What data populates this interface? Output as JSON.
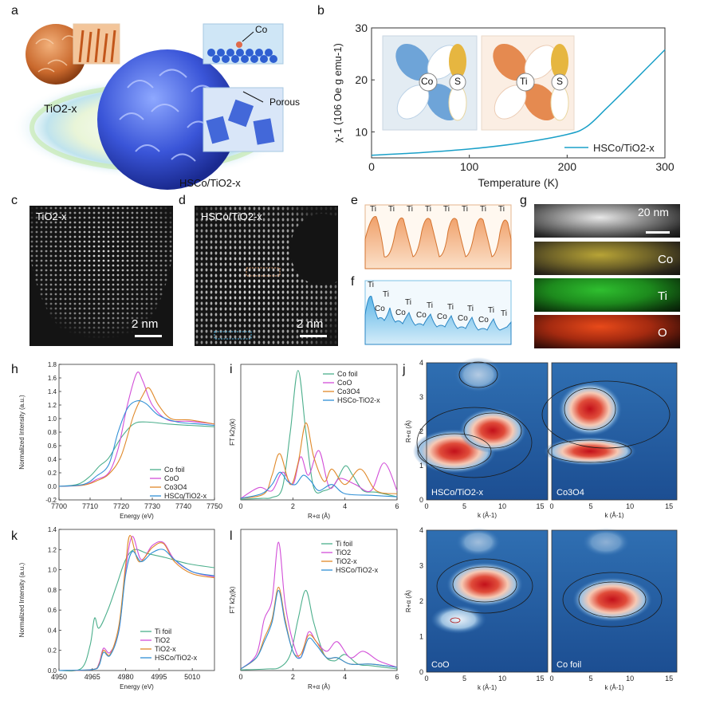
{
  "panel_letters": [
    "a",
    "b",
    "c",
    "d",
    "e",
    "f",
    "g",
    "h",
    "i",
    "j",
    "k",
    "l"
  ],
  "a": {
    "tio2_label": "TiO2-x",
    "hsco_label": "HSCo/TiO2-x",
    "co_label": "Co",
    "porous_label": "Porous"
  },
  "b": {
    "ylabel": "χ-1 (106 Oe g emu-1)",
    "xlabel": "Temperature (K)",
    "legend": "HSCo/TiO2-x",
    "co_label": "Co",
    "s_label": "S",
    "ti_label": "Ti",
    "s2_label": "S",
    "xticks": [
      "0",
      "100",
      "200",
      "300"
    ],
    "yticks": [
      "10",
      "20",
      "30"
    ]
  },
  "c": {
    "title": "TiO2-x",
    "scale": "2 nm"
  },
  "d": {
    "title": "HSCo/TiO2-x",
    "scale": "2 nm"
  },
  "e": {
    "labels": [
      "Ti",
      "Ti",
      "Ti",
      "Ti",
      "Ti",
      "Ti",
      "Ti",
      "Ti"
    ]
  },
  "f": {
    "labels": [
      "Ti",
      "Ti",
      "Co",
      "Ti",
      "Co",
      "Ti",
      "Co",
      "Ti",
      "Co",
      "Ti",
      "Co",
      "Ti",
      "Co",
      "Ti"
    ]
  },
  "g": {
    "scale": "20 nm",
    "maps": [
      "Co",
      "Ti",
      "O"
    ],
    "colors": [
      "#b8a436",
      "#2fa52f",
      "#d43a1a"
    ]
  },
  "h": {
    "ylabel": "Normalized Intensity (a.u.)",
    "xlabel": "Energy (eV)",
    "xticks": [
      "7700",
      "7710",
      "7720",
      "7730",
      "7740",
      "7750"
    ],
    "yticks": [
      "-0.2",
      "0.0",
      "0.2",
      "0.4",
      "0.6",
      "0.8",
      "1.0",
      "1.2",
      "1.4",
      "1.6",
      "1.8"
    ],
    "legend": [
      "Co foil",
      "CoO",
      "Co3O4",
      "HSCo/TiO2-x"
    ]
  },
  "i": {
    "ylabel": "FT k2χ(k)",
    "xlabel": "R+α (Å)",
    "xticks": [
      "0",
      "2",
      "4",
      "6"
    ],
    "legend": [
      "Co foil",
      "CoO",
      "Co3O4",
      "HSCo-TiO2-x"
    ]
  },
  "j": {
    "ylabel": "R+α (Å)",
    "xlabel": "k (Å-1)",
    "xticks": [
      "0",
      "5",
      "10",
      "15"
    ],
    "yticks": [
      "0",
      "1",
      "2",
      "3",
      "4"
    ],
    "maps": [
      "HSCo/TiO2-x",
      "Co3O4",
      "CoO",
      "Co foil"
    ]
  },
  "k": {
    "ylabel": "Normalized Intensity (a.u.)",
    "xlabel": "Energy (eV)",
    "xticks": [
      "4950",
      "4965",
      "4980",
      "4995",
      "5010"
    ],
    "yticks": [
      "0.0",
      "0.2",
      "0.4",
      "0.6",
      "0.8",
      "1.0",
      "1.2",
      "1.4"
    ],
    "legend": [
      "Ti foil",
      "TiO2",
      "TiO2-x",
      "HSCo/TiO2-x"
    ]
  },
  "l": {
    "ylabel": "FT k2χ(k)",
    "xlabel": "R+α (Å)",
    "xticks": [
      "0",
      "2",
      "4",
      "6"
    ],
    "legend": [
      "Ti foil",
      "TiO2",
      "TiO2-x",
      "HSCo/TiO2-x"
    ]
  },
  "colors": {
    "green": "#4caf8c",
    "magenta": "#d24fd8",
    "orange": "#e0892a",
    "blue": "#2f8fd6",
    "cyan": "#1aa0c8"
  },
  "chart_data": [
    {
      "type": "line",
      "panel": "b",
      "xlabel": "Temperature (K)",
      "ylabel": "χ-1 (106 Oe g emu-1)",
      "xlim": [
        0,
        300
      ],
      "ylim": [
        5,
        30
      ],
      "series": [
        {
          "name": "HSCo/TiO2-x",
          "x": [
            0,
            50,
            100,
            150,
            200,
            220,
            240,
            260,
            280,
            300
          ],
          "y": [
            5.5,
            6.0,
            6.7,
            7.8,
            9.5,
            11.0,
            14.5,
            18.2,
            22.0,
            25.8
          ]
        }
      ]
    },
    {
      "type": "line",
      "panel": "h",
      "xlabel": "Energy (eV)",
      "ylabel": "Normalized Intensity (a.u.)",
      "xlim": [
        7700,
        7750
      ],
      "ylim": [
        -0.2,
        1.8
      ],
      "series": [
        {
          "name": "Co foil",
          "x": [
            7700,
            7706,
            7710,
            7713,
            7716,
            7720,
            7724,
            7728,
            7735,
            7742,
            7750
          ],
          "y": [
            0.0,
            0.03,
            0.15,
            0.3,
            0.42,
            0.72,
            0.92,
            0.95,
            0.92,
            0.9,
            0.88
          ]
        },
        {
          "name": "CoO",
          "x": [
            7700,
            7708,
            7712,
            7716,
            7719,
            7722,
            7725,
            7727,
            7730,
            7735,
            7742,
            7750
          ],
          "y": [
            0.0,
            0.02,
            0.1,
            0.2,
            0.55,
            1.2,
            1.67,
            1.55,
            1.2,
            0.98,
            0.96,
            0.92
          ]
        },
        {
          "name": "Co3O4",
          "x": [
            7700,
            7708,
            7712,
            7716,
            7720,
            7724,
            7727,
            7729,
            7732,
            7736,
            7742,
            7750
          ],
          "y": [
            0.0,
            0.02,
            0.08,
            0.18,
            0.45,
            1.05,
            1.35,
            1.45,
            1.2,
            1.0,
            0.98,
            0.92
          ]
        },
        {
          "name": "HSCo/TiO2-x",
          "x": [
            7700,
            7708,
            7712,
            7716,
            7719,
            7722,
            7725,
            7728,
            7732,
            7738,
            7745,
            7750
          ],
          "y": [
            0.0,
            0.03,
            0.15,
            0.32,
            0.8,
            1.15,
            1.26,
            1.22,
            1.05,
            0.95,
            0.92,
            0.9
          ]
        }
      ]
    },
    {
      "type": "line",
      "panel": "i",
      "xlabel": "R+α (Å)",
      "ylabel": "FT k2χ(k)",
      "xlim": [
        0,
        6
      ],
      "series": [
        {
          "name": "Co foil",
          "x": [
            0,
            0.8,
            1.2,
            1.6,
            1.9,
            2.2,
            2.5,
            2.8,
            3.2,
            3.6,
            4.0,
            4.3,
            4.7,
            5.2,
            6.0
          ],
          "y": [
            0.02,
            0.05,
            0.08,
            0.4,
            2.2,
            4.2,
            2.2,
            0.4,
            0.3,
            0.5,
            1.1,
            0.8,
            0.3,
            0.25,
            0.1
          ]
        },
        {
          "name": "CoO",
          "x": [
            0,
            0.7,
            1.2,
            1.6,
            2.0,
            2.3,
            2.6,
            3.0,
            3.4,
            3.8,
            4.4,
            5.0,
            5.5,
            6.0
          ],
          "y": [
            0.05,
            0.4,
            0.3,
            0.9,
            0.5,
            1.4,
            0.8,
            1.6,
            0.4,
            0.7,
            0.5,
            0.3,
            1.2,
            0.3
          ]
        },
        {
          "name": "Co3O4",
          "x": [
            0,
            0.9,
            1.2,
            1.5,
            1.9,
            2.2,
            2.5,
            2.8,
            3.2,
            3.5,
            4.0,
            4.6,
            5.2,
            6.0
          ],
          "y": [
            0.05,
            0.2,
            0.8,
            1.5,
            0.5,
            1.2,
            2.5,
            1.4,
            0.6,
            1.0,
            0.5,
            1.0,
            0.3,
            0.2
          ]
        },
        {
          "name": "HSCo-TiO2-x",
          "x": [
            0,
            0.8,
            1.2,
            1.5,
            1.8,
            2.1,
            2.4,
            2.7,
            3.0,
            3.5,
            4.0,
            5.0,
            6.0
          ],
          "y": [
            0.05,
            0.2,
            0.5,
            0.9,
            0.6,
            0.5,
            0.8,
            0.6,
            0.3,
            0.5,
            0.2,
            0.15,
            0.1
          ]
        }
      ]
    },
    {
      "type": "line",
      "panel": "k",
      "xlabel": "Energy (eV)",
      "ylabel": "Normalized Intensity (a.u.)",
      "xlim": [
        4950,
        5020
      ],
      "ylim": [
        0,
        1.4
      ],
      "series": [
        {
          "name": "Ti foil",
          "x": [
            4950,
            4960,
            4964,
            4966,
            4968,
            4972,
            4976,
            4980,
            4984,
            4990,
            4998,
            5008,
            5020
          ],
          "y": [
            0.0,
            0.02,
            0.25,
            0.52,
            0.42,
            0.6,
            0.85,
            1.1,
            1.2,
            1.16,
            1.12,
            1.06,
            1.02
          ]
        },
        {
          "name": "TiO2",
          "x": [
            4950,
            4965,
            4968,
            4970,
            4973,
            4977,
            4980,
            4983,
            4987,
            4992,
            4997,
            5002,
            5010,
            5020
          ],
          "y": [
            0.0,
            0.01,
            0.07,
            0.22,
            0.18,
            0.4,
            1.0,
            1.33,
            1.1,
            1.24,
            1.27,
            1.1,
            0.98,
            0.93
          ]
        },
        {
          "name": "TiO2-x",
          "x": [
            4950,
            4965,
            4968,
            4970,
            4973,
            4977,
            4980,
            4982,
            4986,
            4992,
            4997,
            5002,
            5010,
            5020
          ],
          "y": [
            0.0,
            0.01,
            0.06,
            0.2,
            0.16,
            0.45,
            1.05,
            1.34,
            1.08,
            1.22,
            1.26,
            1.08,
            0.96,
            0.92
          ]
        },
        {
          "name": "HSCo/TiO2-x",
          "x": [
            4950,
            4965,
            4968,
            4970,
            4973,
            4977,
            4980,
            4983,
            4987,
            4992,
            4997,
            5002,
            5010,
            5020
          ],
          "y": [
            0.0,
            0.01,
            0.05,
            0.18,
            0.15,
            0.4,
            0.95,
            1.18,
            1.08,
            1.17,
            1.2,
            1.1,
            0.98,
            0.94
          ]
        }
      ]
    },
    {
      "type": "line",
      "panel": "l",
      "xlabel": "R+α (Å)",
      "ylabel": "FT k2χ(k)",
      "xlim": [
        0,
        6
      ],
      "series": [
        {
          "name": "Ti foil",
          "x": [
            0,
            1.0,
            1.5,
            1.9,
            2.2,
            2.5,
            2.8,
            3.2,
            3.6,
            4.0,
            4.5,
            5.0,
            6.0
          ],
          "y": [
            0.02,
            0.05,
            0.1,
            0.5,
            1.6,
            2.5,
            1.5,
            0.5,
            0.3,
            0.5,
            0.2,
            0.15,
            0.05
          ]
        },
        {
          "name": "TiO2",
          "x": [
            0,
            0.6,
            0.9,
            1.2,
            1.45,
            1.7,
            2.0,
            2.3,
            2.6,
            2.9,
            3.3,
            3.7,
            4.2,
            4.7,
            5.3,
            6.0
          ],
          "y": [
            0.05,
            0.5,
            1.6,
            2.2,
            4.0,
            2.1,
            0.9,
            0.4,
            1.2,
            0.9,
            0.6,
            0.9,
            0.4,
            0.6,
            0.3,
            0.1
          ]
        },
        {
          "name": "TiO2-x",
          "x": [
            0,
            0.6,
            0.9,
            1.2,
            1.45,
            1.7,
            2.0,
            2.3,
            2.6,
            2.9,
            3.3,
            3.7,
            4.2,
            5.0,
            6.0
          ],
          "y": [
            0.05,
            0.4,
            1.0,
            1.6,
            2.6,
            1.6,
            0.6,
            0.5,
            1.1,
            0.9,
            0.4,
            0.4,
            0.2,
            0.2,
            0.1
          ]
        },
        {
          "name": "HSCo/TiO2-x",
          "x": [
            0,
            0.6,
            0.9,
            1.2,
            1.45,
            1.7,
            2.0,
            2.3,
            2.6,
            2.9,
            3.3,
            3.7,
            4.2,
            5.0,
            6.0
          ],
          "y": [
            0.05,
            0.4,
            0.9,
            1.5,
            2.5,
            1.5,
            0.6,
            0.4,
            1.0,
            0.8,
            0.4,
            0.4,
            0.2,
            0.2,
            0.1
          ]
        }
      ]
    }
  ]
}
